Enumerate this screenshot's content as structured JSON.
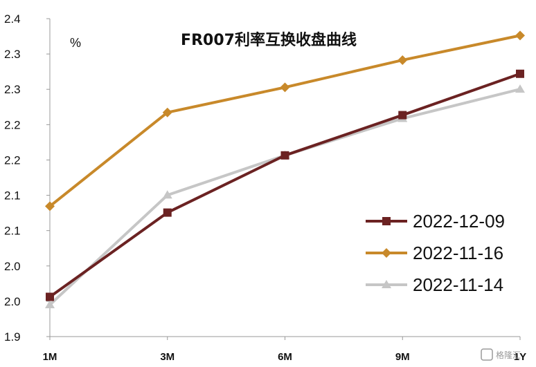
{
  "chart_data": {
    "type": "line",
    "title": "FR007利率互换收盘曲线",
    "unit_label": "%",
    "categories": [
      "1M",
      "3M",
      "6M",
      "9M",
      "1Y"
    ],
    "y_tick_labels": [
      "1.9",
      "2.0",
      "2.0",
      "2.1",
      "2.1",
      "2.2",
      "2.2",
      "2.3",
      "2.3",
      "2.4"
    ],
    "ylim": [
      1.9,
      2.4
    ],
    "grid": false,
    "legend_position": "bottom-right",
    "series": [
      {
        "name": "2022-12-09",
        "color": "#6b2222",
        "marker": "square",
        "values": [
          1.9625,
          2.095,
          2.185,
          2.2483,
          2.3133
        ]
      },
      {
        "name": "2022-11-16",
        "color": "#c8892a",
        "marker": "diamond",
        "values": [
          2.105,
          2.2525,
          2.292,
          2.3348,
          2.3735
        ]
      },
      {
        "name": "2022-11-14",
        "color": "#c6c6c6",
        "marker": "triangle",
        "values": [
          1.95,
          2.1225,
          2.185,
          2.243,
          2.289
        ]
      }
    ]
  },
  "watermark": "格隆汇"
}
